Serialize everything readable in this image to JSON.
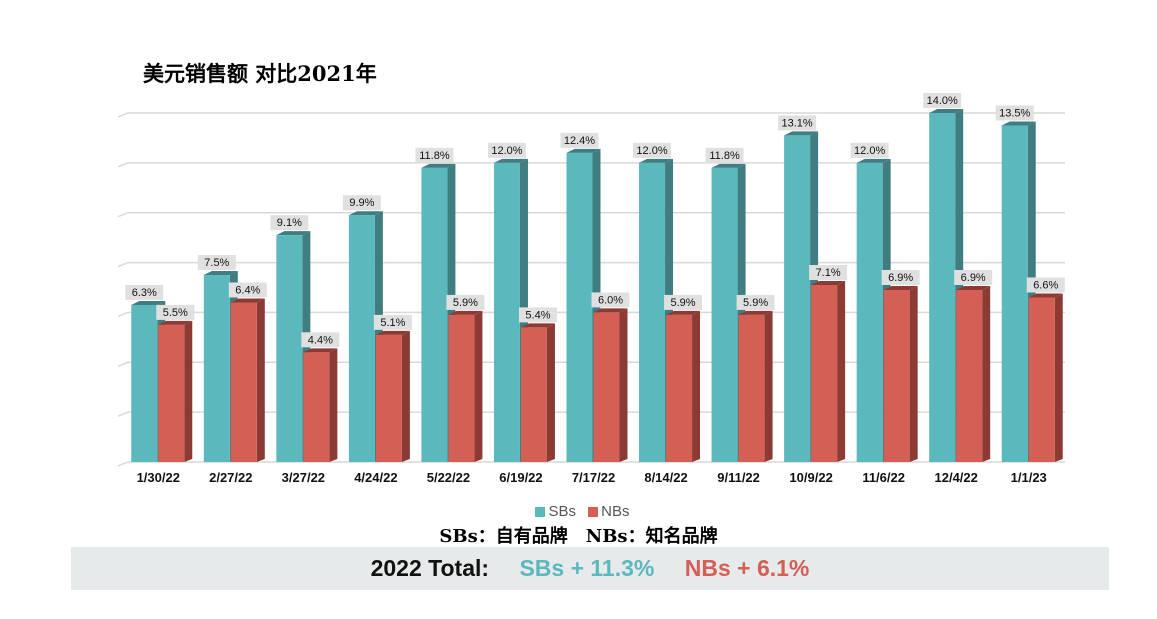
{
  "chart_data": {
    "type": "bar",
    "title": "美元销售额 对比2021年",
    "categories": [
      "1/30/22",
      "2/27/22",
      "3/27/22",
      "4/24/22",
      "5/22/22",
      "6/19/22",
      "7/17/22",
      "8/14/22",
      "9/11/22",
      "10/9/22",
      "11/6/22",
      "12/4/22",
      "1/1/23"
    ],
    "series": [
      {
        "name": "SBs",
        "color": "#5bb8bd",
        "values": [
          6.3,
          7.5,
          9.1,
          9.9,
          11.8,
          12.0,
          12.4,
          12.0,
          11.8,
          13.1,
          12.0,
          14.0,
          13.5
        ],
        "labels": [
          "6.3%",
          "7.5%",
          "9.1%",
          "9.9%",
          "11.8%",
          "12.0%",
          "12.4%",
          "12.0%",
          "11.8%",
          "13.1%",
          "12.0%",
          "14.0%",
          "13.5%"
        ]
      },
      {
        "name": "NBs",
        "color": "#d35f55",
        "values": [
          5.5,
          6.4,
          4.4,
          5.1,
          5.9,
          5.4,
          6.0,
          5.9,
          5.9,
          7.1,
          6.9,
          6.9,
          6.6
        ],
        "labels": [
          "5.5%",
          "6.4%",
          "4.4%",
          "5.1%",
          "5.9%",
          "5.4%",
          "6.0%",
          "5.9%",
          "5.9%",
          "7.1%",
          "6.9%",
          "6.9%",
          "6.6%"
        ]
      }
    ],
    "xlabel": "",
    "ylabel": "",
    "ylim": [
      0,
      14
    ],
    "grid": true,
    "legend": "bottom"
  },
  "note": "SBs：自有品牌　NBs：知名品牌",
  "total": {
    "label": "2022 Total:",
    "sbs": "SBs + 11.3%",
    "nbs": "NBs + 6.1%",
    "sbs_color": "#5bb8bd",
    "nbs_color": "#d35f55"
  }
}
